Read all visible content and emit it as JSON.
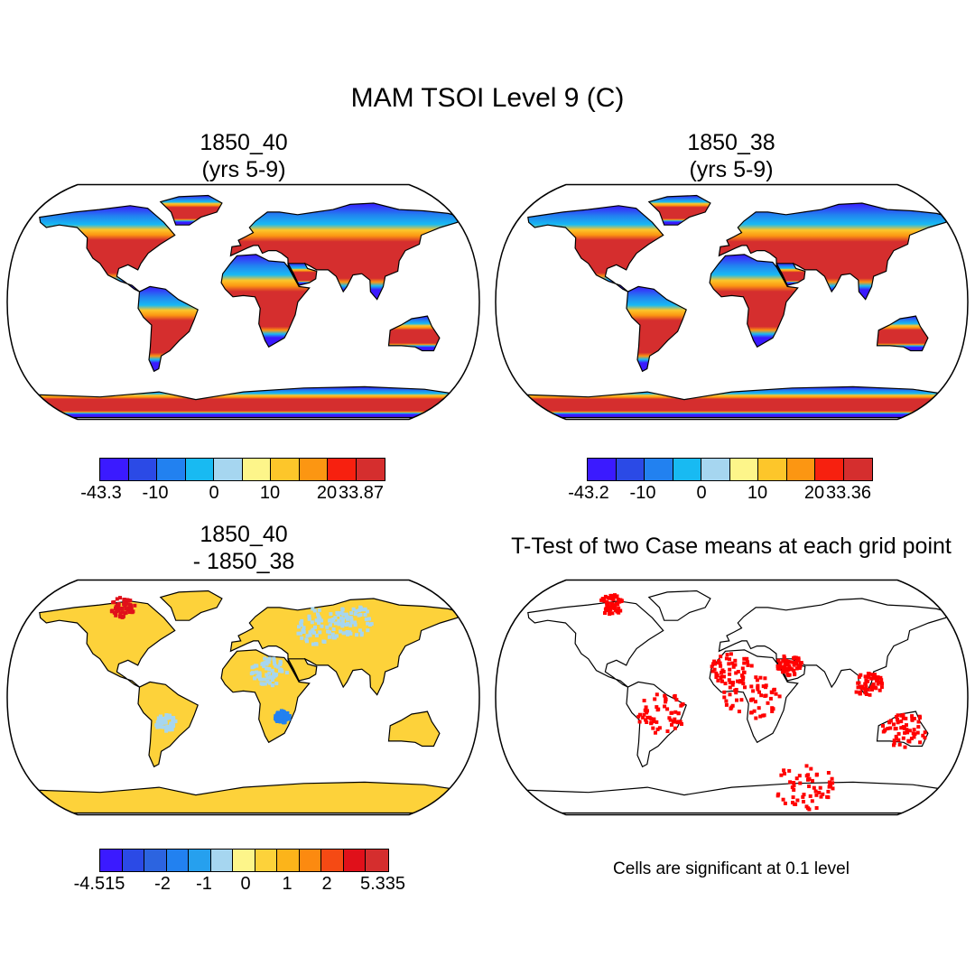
{
  "title": "MAM TSOI Level 9 (C)",
  "panels": [
    {
      "line1": "1850_40",
      "line2": "(yrs 5-9)"
    },
    {
      "line1": "1850_38",
      "line2": "(yrs 5-9)"
    },
    {
      "line1": "1850_40",
      "line2": "- 1850_38"
    },
    {
      "line1": "T-Test of two Case means at each grid point"
    }
  ],
  "colorbars": {
    "abs": {
      "colors": [
        "#3b1aff",
        "#2b4ae6",
        "#2281f0",
        "#18baf2",
        "#a6d6f0",
        "#fdf58a",
        "#fdc62a",
        "#fc9612",
        "#f7200f",
        "#d52e2e"
      ],
      "labels_1": [
        "-43.3",
        "-10",
        "0",
        "10",
        "20",
        "33.87"
      ],
      "labels_2": [
        "-43.2",
        "-10",
        "0",
        "10",
        "20",
        "33.36"
      ]
    },
    "diff": {
      "colors": [
        "#3b1aff",
        "#2b4ae6",
        "#2c64e0",
        "#2281f0",
        "#26a0ee",
        "#a6d6f0",
        "#fdf58a",
        "#fdd23a",
        "#fcb41a",
        "#fc8a10",
        "#f54a14",
        "#e0101a",
        "#d52e2e"
      ],
      "labels": [
        "-4.515",
        "-2",
        "-1",
        "0",
        "1",
        "2",
        "5.335"
      ]
    }
  },
  "significance_note": "Cells are significant at 0.1 level",
  "map_fill_colors": {
    "hot": "#d52e2e",
    "warm": "#fc9612",
    "mild": "#fdc62a",
    "cool": "#18baf2",
    "cold": "#2281f0",
    "ice": "#3b1aff",
    "signif": "#ff0000",
    "diff_pos": "#fdd23a",
    "diff_neg": "#a6d6f0"
  }
}
